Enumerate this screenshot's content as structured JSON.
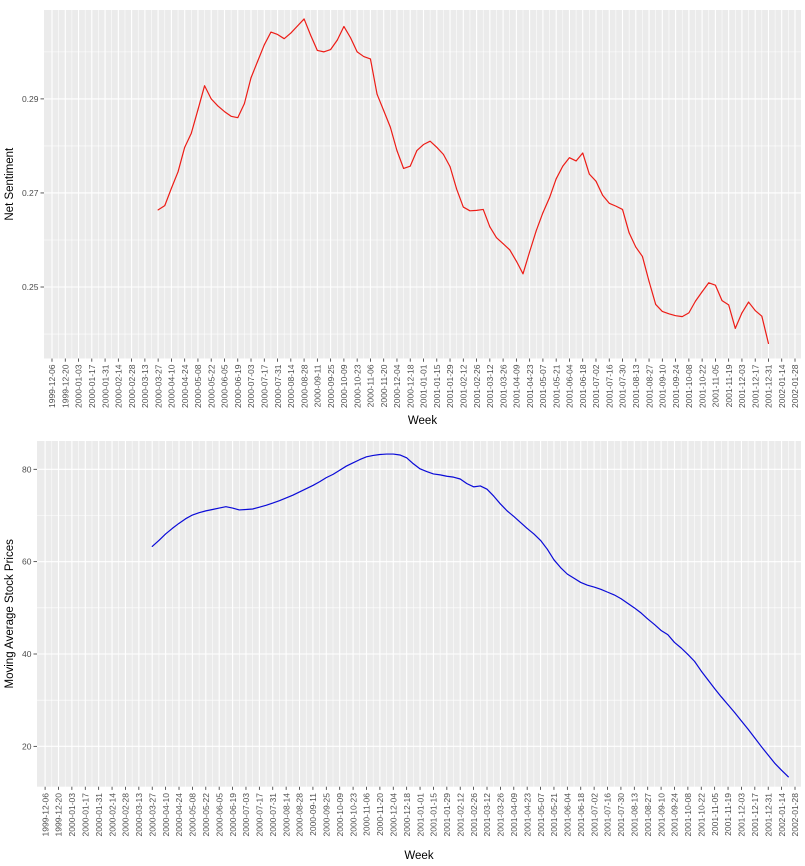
{
  "figure_title": "",
  "chart_data": [
    {
      "type": "line",
      "title": "",
      "xlabel": "Week",
      "ylabel": "Net Sentiment",
      "legend": "none",
      "grid": true,
      "panel_bg": "#EBEBEB",
      "grid_color": "#FFFFFF",
      "line_color": "#ED1C16",
      "ylim": [
        0.2348,
        0.3089
      ],
      "y_ticks": [
        0.25,
        0.27,
        0.29
      ],
      "y_tick_labels": [
        "0.25",
        "0.27",
        "0.29"
      ],
      "y_minor_ticks": [
        0.24,
        0.26,
        0.28,
        0.3
      ],
      "x_tick_labels": [
        "1999-12-06",
        "1999-12-20",
        "2000-01-03",
        "2000-01-17",
        "2000-01-31",
        "2000-02-14",
        "2000-02-28",
        "2000-03-13",
        "2000-03-27",
        "2000-04-10",
        "2000-04-24",
        "2000-05-08",
        "2000-05-22",
        "2000-06-05",
        "2000-06-19",
        "2000-07-03",
        "2000-07-17",
        "2000-07-31",
        "2000-08-14",
        "2000-08-28",
        "2000-09-11",
        "2000-09-25",
        "2000-10-09",
        "2000-10-23",
        "2000-11-06",
        "2000-11-20",
        "2000-12-04",
        "2000-12-18",
        "2001-01-01",
        "2001-01-15",
        "2001-01-29",
        "2001-02-12",
        "2001-02-26",
        "2001-03-12",
        "2001-03-26",
        "2001-04-09",
        "2001-04-23",
        "2001-05-07",
        "2001-05-21",
        "2001-06-04",
        "2001-06-18",
        "2001-07-02",
        "2001-07-16",
        "2001-07-30",
        "2001-08-13",
        "2001-08-27",
        "2001-09-10",
        "2001-09-24",
        "2001-10-08",
        "2001-10-22",
        "2001-11-05",
        "2001-11-19",
        "2001-12-03",
        "2001-12-17",
        "2001-12-31",
        "2002-01-14",
        "2002-01-28"
      ],
      "weeks_per_x_tick": 2,
      "series": [
        {
          "name": "net-sentiment",
          "cadence": "weekly",
          "start_date": "2000-03-27",
          "end_date": "2001-12-31",
          "values": [
            0.2664,
            0.2673,
            0.271,
            0.2745,
            0.2797,
            0.2827,
            0.2877,
            0.2928,
            0.29,
            0.2885,
            0.2873,
            0.2863,
            0.286,
            0.289,
            0.2945,
            0.298,
            0.3015,
            0.3042,
            0.3037,
            0.3028,
            0.304,
            0.3055,
            0.307,
            0.3035,
            0.3003,
            0.3,
            0.3005,
            0.3025,
            0.3054,
            0.303,
            0.3,
            0.299,
            0.2985,
            0.291,
            0.2875,
            0.284,
            0.279,
            0.2752,
            0.2757,
            0.279,
            0.2803,
            0.281,
            0.2797,
            0.2782,
            0.2756,
            0.2708,
            0.267,
            0.2662,
            0.2663,
            0.2665,
            0.2628,
            0.2605,
            0.2592,
            0.2579,
            0.2555,
            0.2528,
            0.2575,
            0.262,
            0.2658,
            0.269,
            0.273,
            0.2757,
            0.2775,
            0.2768,
            0.2785,
            0.274,
            0.2725,
            0.2695,
            0.2678,
            0.2672,
            0.2665,
            0.2615,
            0.2585,
            0.2565,
            0.2512,
            0.2463,
            0.2448,
            0.2443,
            0.2439,
            0.2437,
            0.2445,
            0.247,
            0.249,
            0.2509,
            0.2504,
            0.2471,
            0.2462,
            0.2412,
            0.2445,
            0.2468,
            0.245,
            0.2438,
            0.238
          ]
        }
      ]
    },
    {
      "type": "line",
      "title": "",
      "xlabel": "Week",
      "ylabel": "Moving Average Stock Prices",
      "legend": "none",
      "grid": true,
      "panel_bg": "#EBEBEB",
      "grid_color": "#FFFFFF",
      "line_color": "#0A0AD8",
      "ylim": [
        11.26,
        86.13
      ],
      "y_ticks": [
        20,
        40,
        60,
        80
      ],
      "y_tick_labels": [
        "20",
        "40",
        "60",
        "80"
      ],
      "y_minor_ticks": [
        30,
        50,
        70
      ],
      "x_tick_labels": [
        "1999-12-06",
        "1999-12-20",
        "2000-01-03",
        "2000-01-17",
        "2000-01-31",
        "2000-02-14",
        "2000-02-28",
        "2000-03-13",
        "2000-03-27",
        "2000-04-10",
        "2000-04-24",
        "2000-05-08",
        "2000-05-22",
        "2000-06-05",
        "2000-06-19",
        "2000-07-03",
        "2000-07-17",
        "2000-07-31",
        "2000-08-14",
        "2000-08-28",
        "2000-09-11",
        "2000-09-25",
        "2000-10-09",
        "2000-10-23",
        "2000-11-06",
        "2000-11-20",
        "2000-12-04",
        "2000-12-18",
        "2001-01-01",
        "2001-01-15",
        "2001-01-29",
        "2001-02-12",
        "2001-02-26",
        "2001-03-12",
        "2001-03-26",
        "2001-04-09",
        "2001-04-23",
        "2001-05-07",
        "2001-05-21",
        "2001-06-04",
        "2001-06-18",
        "2001-07-02",
        "2001-07-16",
        "2001-07-30",
        "2001-08-13",
        "2001-08-27",
        "2001-09-10",
        "2001-09-24",
        "2001-10-08",
        "2001-10-22",
        "2001-11-05",
        "2001-11-19",
        "2001-12-03",
        "2001-12-17",
        "2001-12-31",
        "2002-01-14",
        "2002-01-28"
      ],
      "weeks_per_x_tick": 2,
      "series": [
        {
          "name": "moving-average-stock-prices",
          "cadence": "weekly",
          "start_date": "2000-03-27",
          "end_date": "2002-01-21",
          "values": [
            63.3,
            64.6,
            66.0,
            67.2,
            68.3,
            69.3,
            70.1,
            70.6,
            71.0,
            71.3,
            71.6,
            71.9,
            71.6,
            71.2,
            71.3,
            71.4,
            71.8,
            72.2,
            72.7,
            73.2,
            73.8,
            74.4,
            75.1,
            75.8,
            76.5,
            77.3,
            78.2,
            78.9,
            79.8,
            80.7,
            81.4,
            82.1,
            82.7,
            83.0,
            83.2,
            83.3,
            83.3,
            83.1,
            82.5,
            81.2,
            80.1,
            79.5,
            79.0,
            78.8,
            78.5,
            78.3,
            77.9,
            76.9,
            76.2,
            76.4,
            75.7,
            74.2,
            72.5,
            71.0,
            69.8,
            68.5,
            67.2,
            66.0,
            64.6,
            62.7,
            60.4,
            58.7,
            57.3,
            56.4,
            55.5,
            54.9,
            54.5,
            54.0,
            53.4,
            52.8,
            52.0,
            51.0,
            50.0,
            48.9,
            47.6,
            46.4,
            45.1,
            44.2,
            42.5,
            41.3,
            39.9,
            38.4,
            36.3,
            34.4,
            32.5,
            30.7,
            29.0,
            27.3,
            25.5,
            23.7,
            21.8,
            19.9,
            18.1,
            16.3,
            14.8,
            13.4
          ]
        }
      ]
    }
  ]
}
